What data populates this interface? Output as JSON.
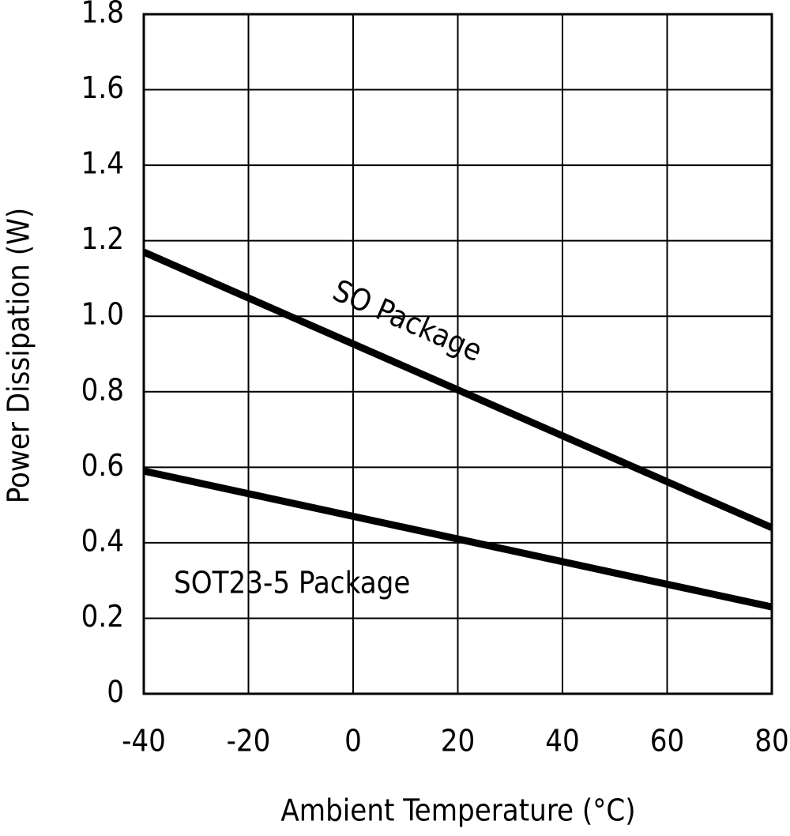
{
  "chart_data": {
    "type": "line",
    "x_label": "Ambient Temperature (°C)",
    "y_label": "Power Dissipation (W)",
    "x": [
      -40,
      80
    ],
    "series": [
      {
        "name": "SO Package",
        "color": "#000000",
        "values": [
          1.17,
          0.44
        ]
      },
      {
        "name": "SOT23-5 Package",
        "color": "#000000",
        "values": [
          0.59,
          0.23
        ]
      }
    ],
    "xlim": [
      -40,
      80
    ],
    "xticks": [
      -40,
      -20,
      0,
      20,
      40,
      60,
      80
    ],
    "ylim": [
      0,
      1.8
    ],
    "yticks": [
      0,
      0.2,
      0.4,
      0.6,
      0.8,
      {
        "value": 1,
        "label": "1.0"
      },
      1.2,
      1.4,
      1.6,
      1.8
    ],
    "grid": true
  }
}
